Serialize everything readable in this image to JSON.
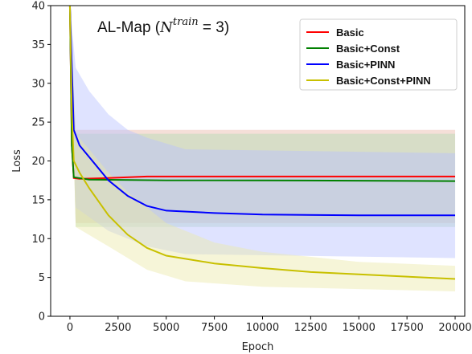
{
  "chart_data": {
    "type": "line",
    "title_prefix": "AL-Map (",
    "title_var": "N",
    "title_sup": "train",
    "title_suffix": " = 3)",
    "xlabel": "Epoch",
    "ylabel": "Loss",
    "xlim": [
      -1000,
      20500
    ],
    "ylim": [
      0,
      40
    ],
    "xticks": [
      0,
      2500,
      5000,
      7500,
      10000,
      12500,
      15000,
      17500,
      20000
    ],
    "yticks": [
      0,
      5,
      10,
      15,
      20,
      25,
      30,
      35,
      40
    ],
    "legend_position": "top-right",
    "grid": false,
    "series": [
      {
        "name": "Basic",
        "color": "#ff0000",
        "band_color": "#e8b8a8",
        "points": [
          [
            0,
            40
          ],
          [
            100,
            22
          ],
          [
            200,
            17.8
          ],
          [
            500,
            17.7
          ],
          [
            2000,
            17.8
          ],
          [
            4000,
            18
          ],
          [
            10000,
            18
          ],
          [
            20000,
            18
          ]
        ],
        "band_upper": [
          [
            0,
            40
          ],
          [
            300,
            24
          ],
          [
            20000,
            24
          ]
        ],
        "band_lower": [
          [
            0,
            40
          ],
          [
            300,
            12
          ],
          [
            20000,
            12
          ]
        ]
      },
      {
        "name": "Basic+Const",
        "color": "#008000",
        "band_color": "#b4dcb4",
        "points": [
          [
            0,
            40
          ],
          [
            100,
            22
          ],
          [
            200,
            17.9
          ],
          [
            1000,
            17.6
          ],
          [
            5000,
            17.5
          ],
          [
            10000,
            17.5
          ],
          [
            20000,
            17.4
          ]
        ],
        "band_upper": [
          [
            0,
            40
          ],
          [
            300,
            23.5
          ],
          [
            20000,
            23.5
          ]
        ],
        "band_lower": [
          [
            0,
            40
          ],
          [
            300,
            11.5
          ],
          [
            20000,
            11.5
          ]
        ]
      },
      {
        "name": "Basic+PINN",
        "color": "#0000ff",
        "band_color": "#b8c0ff",
        "points": [
          [
            0,
            40
          ],
          [
            200,
            24
          ],
          [
            500,
            22
          ],
          [
            1000,
            20.5
          ],
          [
            2000,
            17.5
          ],
          [
            3000,
            15.5
          ],
          [
            4000,
            14.2
          ],
          [
            5000,
            13.6
          ],
          [
            7500,
            13.3
          ],
          [
            10000,
            13.1
          ],
          [
            15000,
            13
          ],
          [
            20000,
            13
          ]
        ],
        "band_upper": [
          [
            0,
            40
          ],
          [
            300,
            32
          ],
          [
            1000,
            29
          ],
          [
            2000,
            26
          ],
          [
            3000,
            24
          ],
          [
            4000,
            23
          ],
          [
            6000,
            21.5
          ],
          [
            20000,
            21
          ]
        ],
        "band_lower": [
          [
            0,
            40
          ],
          [
            300,
            14
          ],
          [
            2000,
            11
          ],
          [
            4000,
            9
          ],
          [
            6000,
            8
          ],
          [
            20000,
            7.5
          ]
        ]
      },
      {
        "name": "Basic+Const+PINN",
        "color": "#c8c000",
        "band_color": "#ece8a8",
        "points": [
          [
            0,
            40
          ],
          [
            100,
            26
          ],
          [
            200,
            20
          ],
          [
            500,
            18.5
          ],
          [
            1000,
            16.5
          ],
          [
            2000,
            13
          ],
          [
            3000,
            10.5
          ],
          [
            4000,
            8.8
          ],
          [
            5000,
            7.8
          ],
          [
            7500,
            6.8
          ],
          [
            10000,
            6.2
          ],
          [
            12500,
            5.7
          ],
          [
            15000,
            5.4
          ],
          [
            17500,
            5.1
          ],
          [
            20000,
            4.8
          ]
        ],
        "band_upper": [
          [
            0,
            40
          ],
          [
            300,
            23.5
          ],
          [
            1000,
            21.5
          ],
          [
            2000,
            18.5
          ],
          [
            3000,
            16
          ],
          [
            4000,
            14
          ],
          [
            5000,
            12
          ],
          [
            7500,
            9.5
          ],
          [
            10000,
            8.3
          ],
          [
            15000,
            7
          ],
          [
            20000,
            6.5
          ]
        ],
        "band_lower": [
          [
            0,
            40
          ],
          [
            300,
            11.5
          ],
          [
            2000,
            9
          ],
          [
            4000,
            6
          ],
          [
            6000,
            4.5
          ],
          [
            10000,
            3.8
          ],
          [
            15000,
            3.5
          ],
          [
            20000,
            3.2
          ]
        ]
      }
    ]
  }
}
